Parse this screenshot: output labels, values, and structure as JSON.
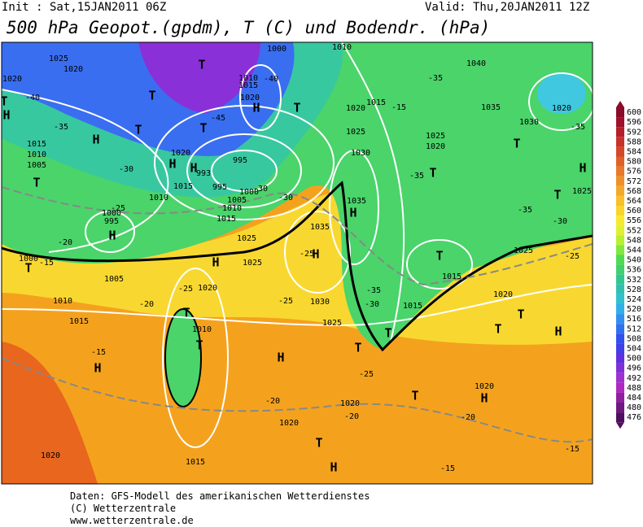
{
  "header": {
    "init": "Init : Sat,15JAN2011 06Z",
    "valid": "Valid: Thu,20JAN2011 12Z",
    "title": "500 hPa Geopot.(gpdm), T (C) und Bodendr. (hPa)"
  },
  "map": {
    "labels": [
      "1025",
      "1020",
      "1020",
      "T",
      "1000",
      "1010",
      "1040",
      "1020",
      "-40",
      "T",
      "H",
      "T",
      "1010",
      "1015",
      "-40",
      "1020",
      "H",
      "T",
      "-35",
      "1035",
      "-35",
      "1020",
      "1015",
      "-15",
      "1030",
      "T",
      "-35",
      "H",
      "T",
      "-45",
      "T",
      "1025",
      "1025",
      "1020",
      "1015",
      "1010",
      "1005",
      "1020",
      "H",
      "995",
      "993",
      "995",
      "H",
      "1030",
      "-35",
      "T",
      "H",
      "-30",
      "T",
      "1015",
      "1000",
      "1005",
      "-30",
      "-30",
      "1010",
      "T",
      "1025",
      "1035",
      "H",
      "-25",
      "1010",
      "1015",
      "1000",
      "995",
      "-35",
      "-30",
      "-20",
      "H",
      "1025",
      "1035",
      "H",
      "1025",
      "-25",
      "T",
      "1000",
      "-15",
      "T",
      "H",
      "1025",
      "-25",
      "1015",
      "1005",
      "-25",
      "1020",
      "-35",
      "1020",
      "-20",
      "1010",
      "-25",
      "1030",
      "-30",
      "1015",
      "T",
      "1010",
      "1015",
      "1025",
      "T",
      "T",
      "T",
      "H",
      "T",
      "H",
      "T",
      "-15",
      "H",
      "1020",
      "H",
      "T",
      "-25",
      "-20",
      "1020",
      "-20",
      "-20",
      "1020",
      "T",
      "H",
      "1015",
      "1020",
      "-15",
      "-15"
    ]
  },
  "colorbar": {
    "ticks": [
      600,
      596,
      592,
      588,
      584,
      580,
      576,
      572,
      568,
      564,
      560,
      556,
      552,
      548,
      544,
      540,
      536,
      532,
      528,
      524,
      520,
      516,
      512,
      508,
      504,
      500,
      496,
      492,
      488,
      484,
      480,
      476
    ],
    "colors": [
      "#8c0a2a",
      "#a0102a",
      "#b51e2a",
      "#c8322a",
      "#d4472a",
      "#e0602a",
      "#e8782a",
      "#f0902a",
      "#f5a82a",
      "#f8c02a",
      "#fad42a",
      "#f8e830",
      "#e0f030",
      "#b8f030",
      "#80e840",
      "#50dc50",
      "#40d070",
      "#30c890",
      "#30c0b0",
      "#30c0d0",
      "#30b0e8",
      "#3090f0",
      "#3070f0",
      "#3050f0",
      "#4040e8",
      "#6030e0",
      "#8030d8",
      "#a030d0",
      "#b028c0",
      "#9020a0",
      "#701880",
      "#500e60"
    ]
  },
  "footer": {
    "lines": [
      "Daten: GFS-Modell des amerikanischen Wetterdienstes",
      "(C) Wetterzentrale",
      "www.wetterzentrale.de"
    ]
  }
}
